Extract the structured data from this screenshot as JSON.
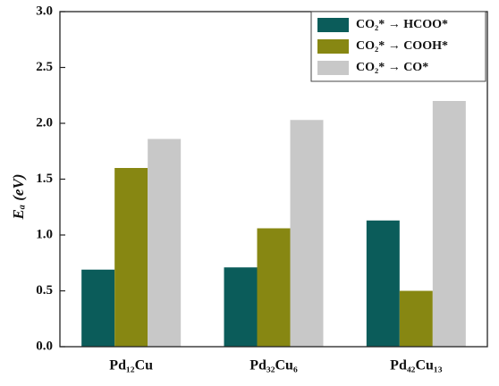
{
  "chart_data": {
    "type": "bar",
    "ylabel": "Eₐ (eV)",
    "categories": [
      "Pd₁₂Cu",
      "Pd₃₂Cu₆",
      "Pd₄₂Cu₁₃"
    ],
    "series": [
      {
        "name": "CO₂* → HCOO*",
        "color": "#0b5c5a",
        "values": [
          0.69,
          0.71,
          1.13
        ]
      },
      {
        "name": "CO₂* → COOH*",
        "color": "#878712",
        "values": [
          1.6,
          1.06,
          0.5
        ]
      },
      {
        "name": "CO₂* → CO*",
        "color": "#c8c8c8",
        "values": [
          1.86,
          2.03,
          2.2
        ]
      }
    ],
    "ylim": [
      0,
      3
    ],
    "yticks": [
      {
        "value": 0,
        "label": "0.0"
      },
      0.5,
      {
        "value": 1,
        "label": "1.0"
      },
      1.5,
      {
        "value": 2,
        "label": "2.0"
      },
      2.5,
      {
        "value": 3,
        "label": "3.0"
      }
    ],
    "legend": "upper right"
  }
}
